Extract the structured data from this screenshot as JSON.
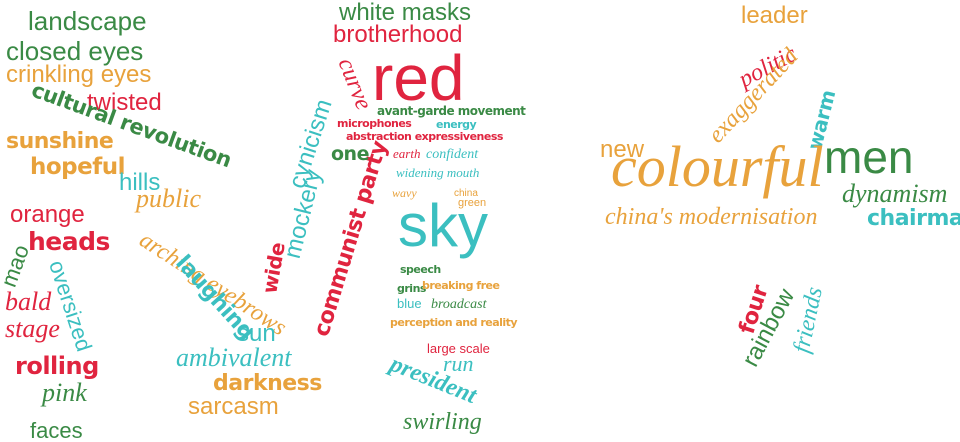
{
  "colors": {
    "green": "#3a8a45",
    "red": "#e0243f",
    "orange": "#e8a23c",
    "teal": "#3bbfc0"
  },
  "words": [
    {
      "text": "landscape",
      "color": "green"
    },
    {
      "text": "closed eyes",
      "color": "green"
    },
    {
      "text": "crinkling eyes",
      "color": "orange"
    },
    {
      "text": "twisted",
      "color": "red"
    },
    {
      "text": "cultural revolution",
      "color": "green"
    },
    {
      "text": "sunshine",
      "color": "orange"
    },
    {
      "text": "hopeful",
      "color": "orange"
    },
    {
      "text": "hills",
      "color": "teal"
    },
    {
      "text": "public",
      "color": "orange"
    },
    {
      "text": "orange",
      "color": "red"
    },
    {
      "text": "heads",
      "color": "red"
    },
    {
      "text": "mao",
      "color": "green"
    },
    {
      "text": "oversized",
      "color": "teal"
    },
    {
      "text": "bald",
      "color": "red"
    },
    {
      "text": "stage",
      "color": "red"
    },
    {
      "text": "rolling",
      "color": "red"
    },
    {
      "text": "pink",
      "color": "green"
    },
    {
      "text": "faces",
      "color": "green"
    },
    {
      "text": "arching eyebrows",
      "color": "orange"
    },
    {
      "text": "laughing",
      "color": "teal"
    },
    {
      "text": "sun",
      "color": "teal"
    },
    {
      "text": "ambivalent",
      "color": "teal"
    },
    {
      "text": "darkness",
      "color": "orange"
    },
    {
      "text": "sarcasm",
      "color": "orange"
    },
    {
      "text": "cynicism",
      "color": "teal"
    },
    {
      "text": "mockery",
      "color": "teal"
    },
    {
      "text": "wide",
      "color": "red"
    },
    {
      "text": "communist party",
      "color": "red"
    },
    {
      "text": "curve",
      "color": "red"
    },
    {
      "text": "one",
      "color": "green"
    },
    {
      "text": "white masks",
      "color": "green"
    },
    {
      "text": "brotherhood",
      "color": "red"
    },
    {
      "text": "red",
      "color": "red"
    },
    {
      "text": "avant-garde movement",
      "color": "green"
    },
    {
      "text": "microphones",
      "color": "red"
    },
    {
      "text": "energy",
      "color": "teal"
    },
    {
      "text": "abstraction expressiveness",
      "color": "red"
    },
    {
      "text": "earth",
      "color": "red"
    },
    {
      "text": "confident",
      "color": "teal"
    },
    {
      "text": "widening mouth",
      "color": "teal"
    },
    {
      "text": "wavy",
      "color": "orange"
    },
    {
      "text": "china",
      "color": "orange"
    },
    {
      "text": "green",
      "color": "orange"
    },
    {
      "text": "sky",
      "color": "teal"
    },
    {
      "text": "speech",
      "color": "green"
    },
    {
      "text": "grins",
      "color": "green"
    },
    {
      "text": "breaking free",
      "color": "orange"
    },
    {
      "text": "blue",
      "color": "teal"
    },
    {
      "text": "broadcast",
      "color": "green"
    },
    {
      "text": "perception and reality",
      "color": "orange"
    },
    {
      "text": "large scale",
      "color": "red"
    },
    {
      "text": "run",
      "color": "teal"
    },
    {
      "text": "president",
      "color": "teal"
    },
    {
      "text": "swirling",
      "color": "green"
    },
    {
      "text": "leader",
      "color": "orange"
    },
    {
      "text": "politic",
      "color": "red"
    },
    {
      "text": "exaggerated",
      "color": "orange"
    },
    {
      "text": "warm",
      "color": "teal"
    },
    {
      "text": "new",
      "color": "orange"
    },
    {
      "text": "colourful",
      "color": "orange"
    },
    {
      "text": "men",
      "color": "green"
    },
    {
      "text": "dynamism",
      "color": "green"
    },
    {
      "text": "china's modernisation",
      "color": "orange"
    },
    {
      "text": "chairman",
      "color": "teal"
    },
    {
      "text": "four",
      "color": "red"
    },
    {
      "text": "rainbow",
      "color": "green"
    },
    {
      "text": "friends",
      "color": "teal"
    }
  ]
}
